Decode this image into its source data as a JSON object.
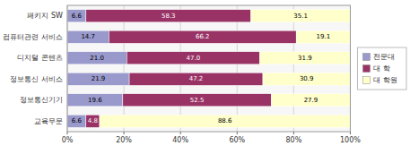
{
  "chart_data": {
    "type": "bar",
    "orientation": "horizontal",
    "stacked": true,
    "categories": [
      "패키지 SW",
      "컴퓨터관련 서비스",
      "디지털 콘텐츠",
      "정보통신 서비스",
      "정보통신기기",
      "교육무문"
    ],
    "series": [
      {
        "name": "전문대",
        "color": "#9999cc",
        "values": [
          6.6,
          14.7,
          21.0,
          21.9,
          19.6,
          6.6
        ],
        "value_labels": [
          "6.6",
          "14.7",
          "21.0",
          "21.9",
          "19.6",
          "6.6"
        ]
      },
      {
        "name": "대 학",
        "color": "#993366",
        "values": [
          58.3,
          66.2,
          47.0,
          47.2,
          52.5,
          4.8
        ],
        "value_labels": [
          "58.3",
          "66.2",
          "47.0",
          "47.2",
          "52.5",
          "4.8"
        ]
      },
      {
        "name": "대 학원",
        "color": "#ffffcc",
        "values": [
          35.1,
          19.1,
          31.9,
          30.9,
          27.9,
          88.6
        ],
        "value_labels": [
          "35.1",
          "19.1",
          "31.9",
          "30.9",
          "27.9",
          "88.6"
        ]
      }
    ],
    "xlim": [
      0,
      100
    ],
    "xticks": [
      {
        "value": 0,
        "label": "0%"
      },
      {
        "value": 20,
        "label": "20%"
      },
      {
        "value": 40,
        "label": "40%"
      },
      {
        "value": 60,
        "label": "60%"
      },
      {
        "value": 80,
        "label": "80%"
      },
      {
        "value": 100,
        "label": "100%"
      }
    ],
    "grid": true,
    "data_labels": true,
    "legend": "right"
  }
}
